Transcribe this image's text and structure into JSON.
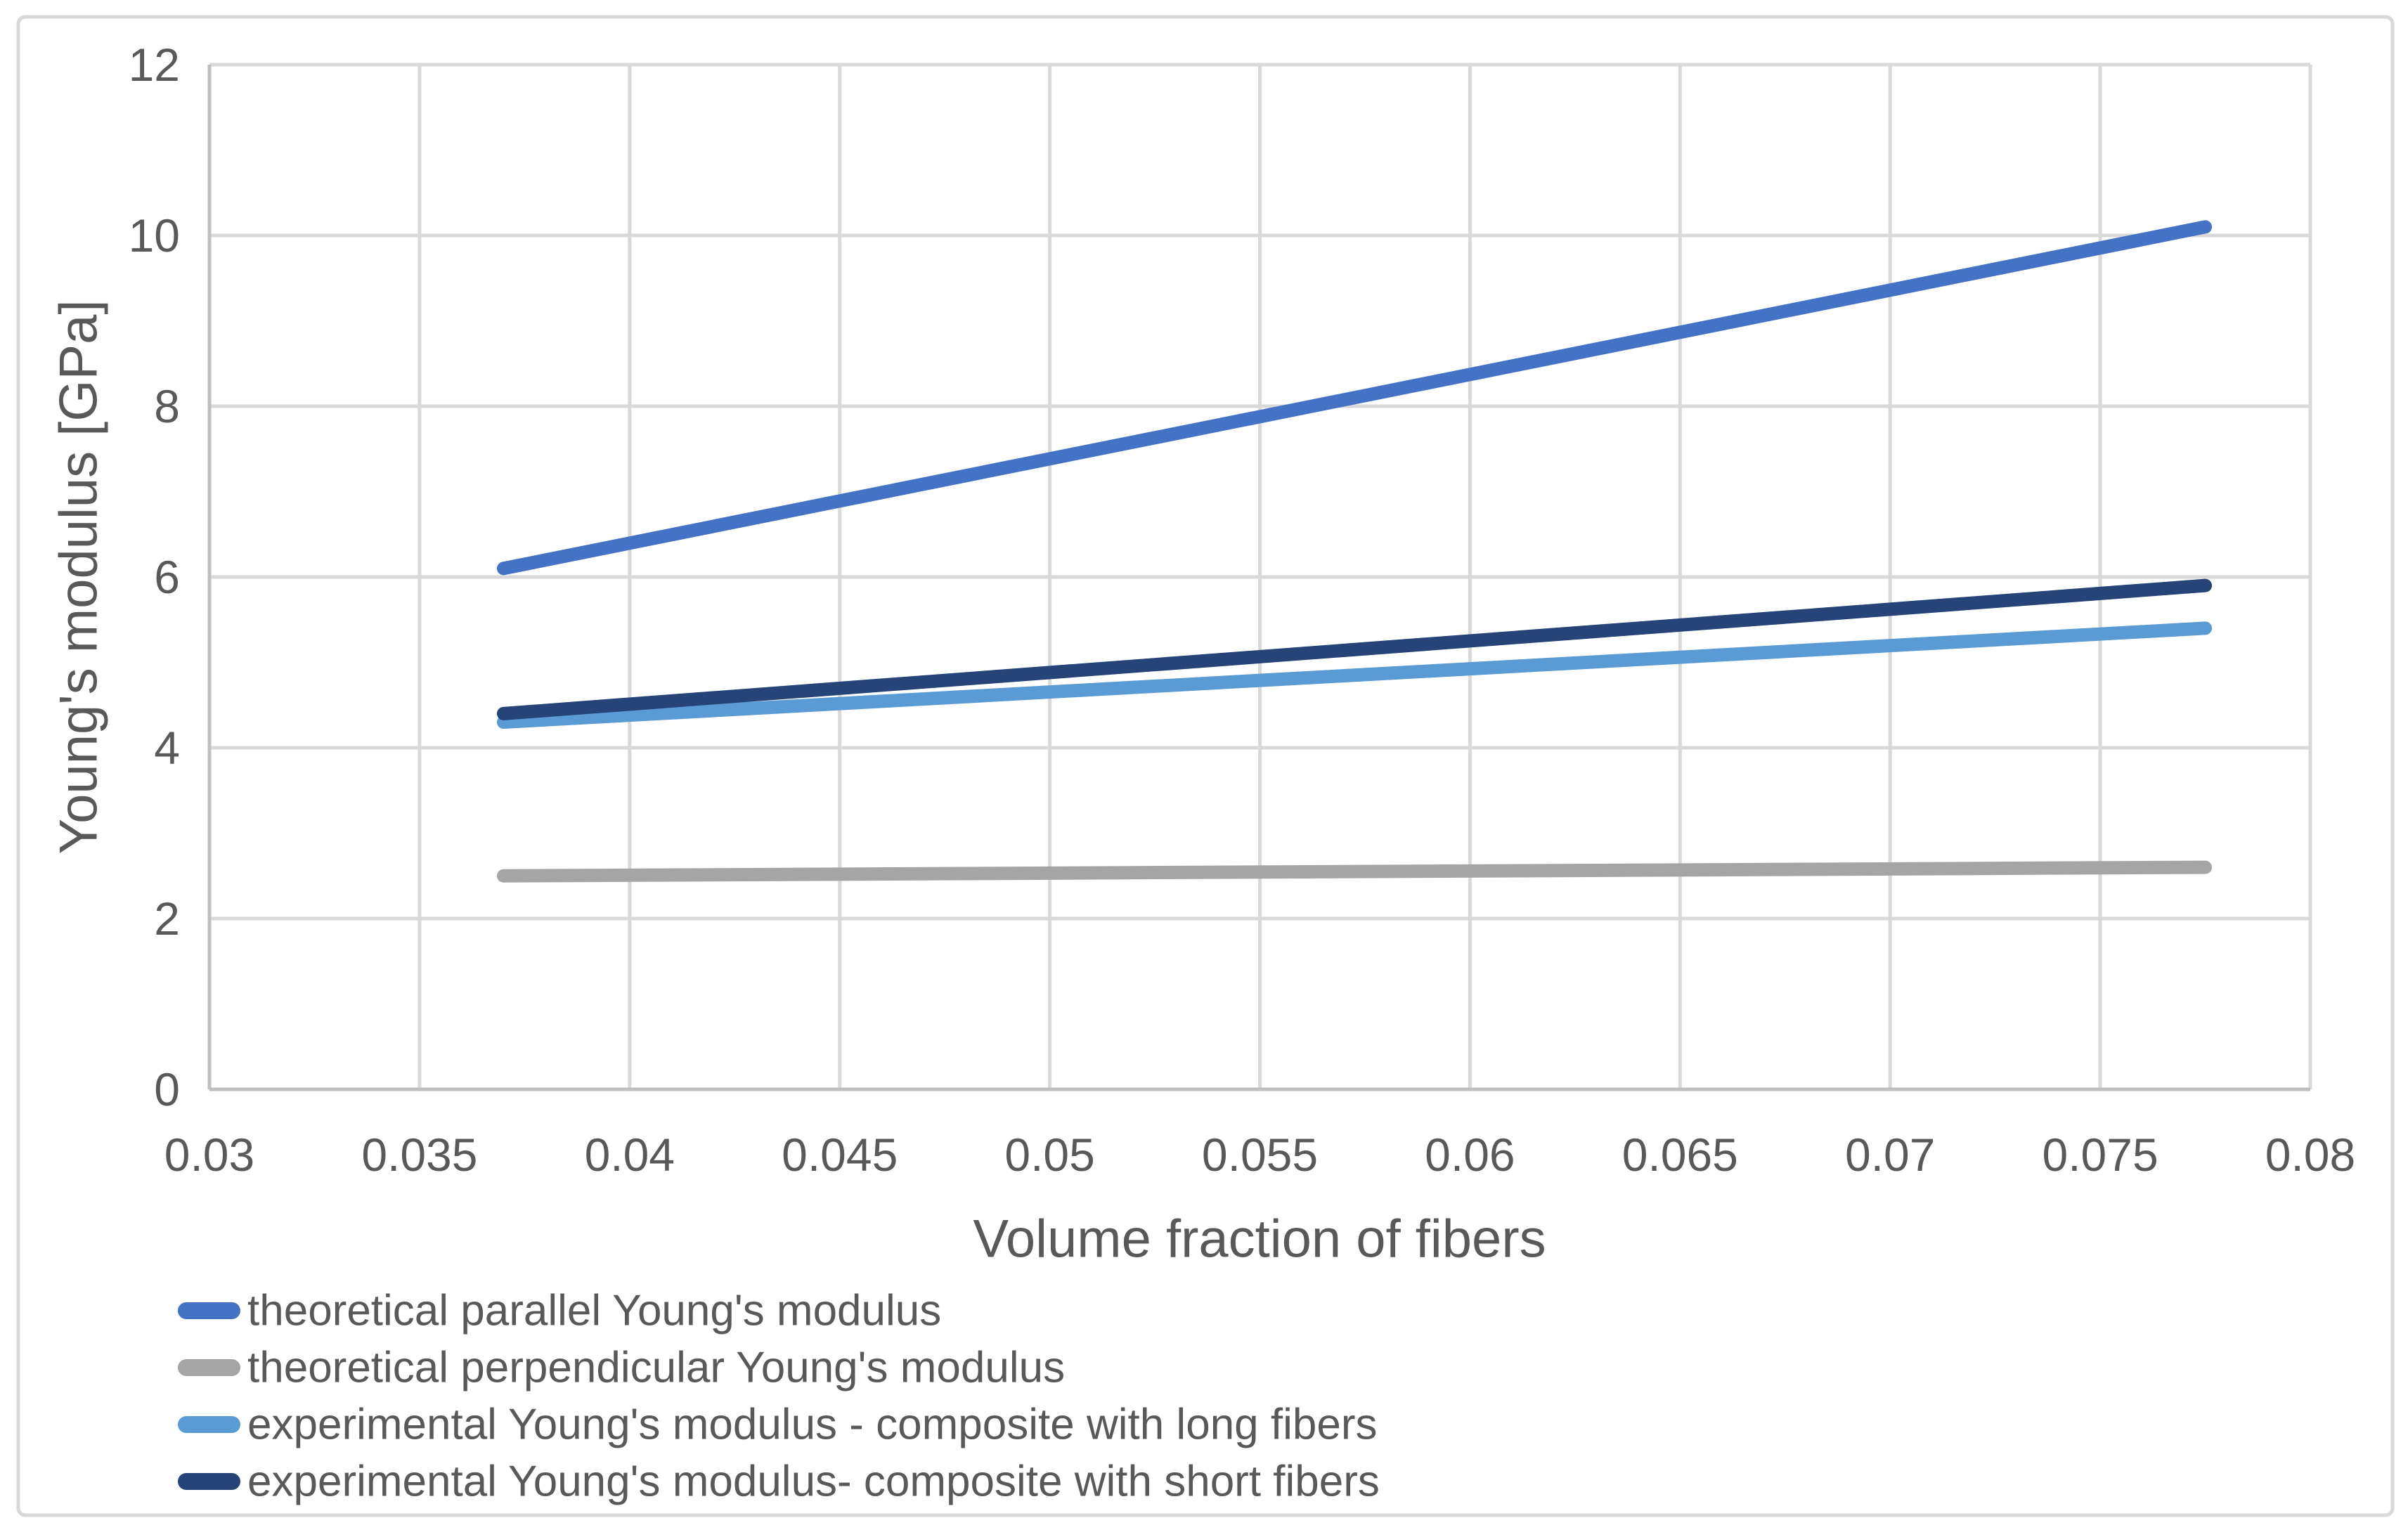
{
  "chart_data": {
    "type": "line",
    "title": "",
    "xlabel": "Volume fraction of fibers",
    "ylabel": "Young's modulus [GPa]",
    "xlim": [
      0.03,
      0.08
    ],
    "ylim": [
      0,
      12
    ],
    "x_ticks": [
      0.03,
      0.035,
      0.04,
      0.045,
      0.05,
      0.055,
      0.06,
      0.065,
      0.07,
      0.075,
      0.08
    ],
    "x_tick_labels": [
      "0.03",
      "0.035",
      "0.04",
      "0.045",
      "0.05",
      "0.055",
      "0.06",
      "0.065",
      "0.07",
      "0.075",
      "0.08"
    ],
    "y_ticks": [
      0,
      2,
      4,
      6,
      8,
      10,
      12
    ],
    "y_tick_labels": [
      "0",
      "2",
      "4",
      "6",
      "8",
      "10",
      "12"
    ],
    "grid": true,
    "legend_position": "bottom-left",
    "series": [
      {
        "name": "theoretical parallel Young's modulus",
        "color": "#4472C4",
        "x": [
          0.037,
          0.0775
        ],
        "values": [
          6.1,
          10.1
        ]
      },
      {
        "name": "theoretical perpendicular Young's modulus",
        "color": "#A5A5A5",
        "x": [
          0.037,
          0.0775
        ],
        "values": [
          2.5,
          2.6
        ]
      },
      {
        "name": "experimental Young's modulus - composite with long fibers",
        "color": "#5B9BD5",
        "x": [
          0.037,
          0.0775
        ],
        "values": [
          4.3,
          5.4
        ]
      },
      {
        "name": "experimental Young's modulus- composite with short fibers",
        "color": "#264478",
        "x": [
          0.037,
          0.0775
        ],
        "values": [
          4.4,
          5.9
        ]
      }
    ]
  },
  "style": {
    "text_color": "#595959",
    "gridline_color": "#D9D9D9",
    "axis_line_color": "#BFBFBF",
    "chart_border_color": "#D9D9D9",
    "background_color": "#FFFFFF"
  }
}
